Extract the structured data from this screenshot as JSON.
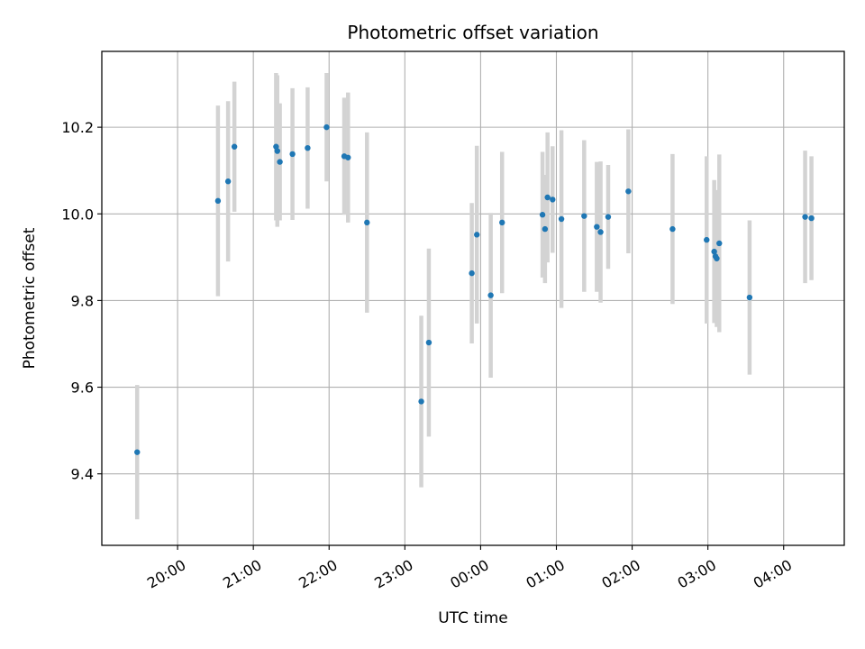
{
  "chart_data": {
    "type": "scatter",
    "title": "Photometric offset variation",
    "xlabel": "UTC time",
    "ylabel": "Photometric offset",
    "x_unit": "hours (UTC, clock time; values past 24 are after midnight)",
    "xlim": [
      "19:00",
      "04:48"
    ],
    "ylim": [
      9.235,
      10.375
    ],
    "grid": true,
    "error_bar_color": "#d3d3d3",
    "point_color": "#1f77b4",
    "x_ticks": [
      "20:00",
      "21:00",
      "22:00",
      "23:00",
      "00:00",
      "01:00",
      "02:00",
      "03:00",
      "04:00"
    ],
    "y_ticks": [
      "9.4",
      "9.6",
      "9.8",
      "10.0",
      "10.2"
    ],
    "points": [
      {
        "time": "19:28",
        "y": 9.45,
        "err": 0.155
      },
      {
        "time": "20:32",
        "y": 10.03,
        "err": 0.22
      },
      {
        "time": "20:40",
        "y": 10.075,
        "err": 0.185
      },
      {
        "time": "20:45",
        "y": 10.155,
        "err": 0.15
      },
      {
        "time": "21:18",
        "y": 10.155,
        "err": 0.17
      },
      {
        "time": "21:19",
        "y": 10.145,
        "err": 0.175
      },
      {
        "time": "21:21",
        "y": 10.12,
        "err": 0.135
      },
      {
        "time": "21:31",
        "y": 10.138,
        "err": 0.152
      },
      {
        "time": "21:43",
        "y": 10.152,
        "err": 0.14
      },
      {
        "time": "21:58",
        "y": 10.2,
        "err": 0.125
      },
      {
        "time": "22:12",
        "y": 10.133,
        "err": 0.135
      },
      {
        "time": "22:15",
        "y": 10.13,
        "err": 0.15
      },
      {
        "time": "22:30",
        "y": 9.98,
        "err": 0.208
      },
      {
        "time": "23:13",
        "y": 9.567,
        "err": 0.198
      },
      {
        "time": "23:19",
        "y": 9.703,
        "err": 0.217
      },
      {
        "time": "23:53",
        "y": 9.863,
        "err": 0.162
      },
      {
        "time": "23:57",
        "y": 9.952,
        "err": 0.205
      },
      {
        "time": "00:08",
        "y": 9.812,
        "err": 0.19
      },
      {
        "time": "00:17",
        "y": 9.98,
        "err": 0.163
      },
      {
        "time": "00:49",
        "y": 9.998,
        "err": 0.145
      },
      {
        "time": "00:51",
        "y": 9.965,
        "err": 0.125
      },
      {
        "time": "00:53",
        "y": 10.038,
        "err": 0.15
      },
      {
        "time": "00:57",
        "y": 10.033,
        "err": 0.123
      },
      {
        "time": "01:04",
        "y": 9.988,
        "err": 0.205
      },
      {
        "time": "01:22",
        "y": 9.995,
        "err": 0.175
      },
      {
        "time": "01:32",
        "y": 9.97,
        "err": 0.15
      },
      {
        "time": "01:35",
        "y": 9.958,
        "err": 0.163
      },
      {
        "time": "01:41",
        "y": 9.993,
        "err": 0.12
      },
      {
        "time": "01:57",
        "y": 10.052,
        "err": 0.143
      },
      {
        "time": "02:32",
        "y": 9.965,
        "err": 0.173
      },
      {
        "time": "02:59",
        "y": 9.94,
        "err": 0.193
      },
      {
        "time": "03:05",
        "y": 9.913,
        "err": 0.165
      },
      {
        "time": "03:06",
        "y": 9.902,
        "err": 0.148
      },
      {
        "time": "03:07",
        "y": 9.897,
        "err": 0.158
      },
      {
        "time": "03:09",
        "y": 9.932,
        "err": 0.205
      },
      {
        "time": "03:33",
        "y": 9.807,
        "err": 0.178
      },
      {
        "time": "04:17",
        "y": 9.993,
        "err": 0.153
      },
      {
        "time": "04:22",
        "y": 9.99,
        "err": 0.143
      }
    ]
  }
}
